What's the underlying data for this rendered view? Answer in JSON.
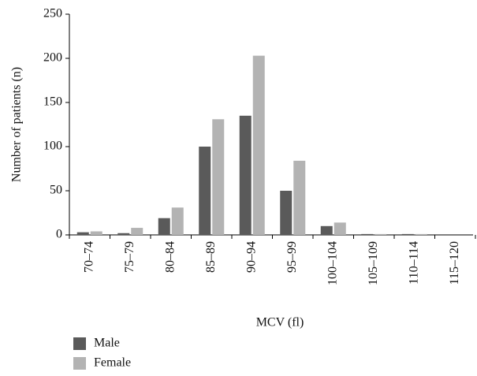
{
  "chart_data": {
    "type": "bar",
    "x_label": "MCV (fl)",
    "y_label": "Number of patients (n)",
    "categories": [
      "70–74",
      "75–79",
      "80–84",
      "85–89",
      "90–94",
      "95–99",
      "100–104",
      "105–109",
      "110–114",
      "115–120"
    ],
    "series": [
      {
        "name": "Male",
        "color": "#5a5a5a",
        "values": [
          3,
          2,
          19,
          100,
          135,
          50,
          10,
          1,
          1,
          0
        ]
      },
      {
        "name": "Female",
        "color": "#b3b3b3",
        "values": [
          4,
          8,
          31,
          131,
          203,
          84,
          14,
          1,
          1,
          0
        ]
      }
    ],
    "ylim": [
      0,
      250
    ],
    "yticks": [
      0,
      50,
      100,
      150,
      200,
      250
    ]
  }
}
